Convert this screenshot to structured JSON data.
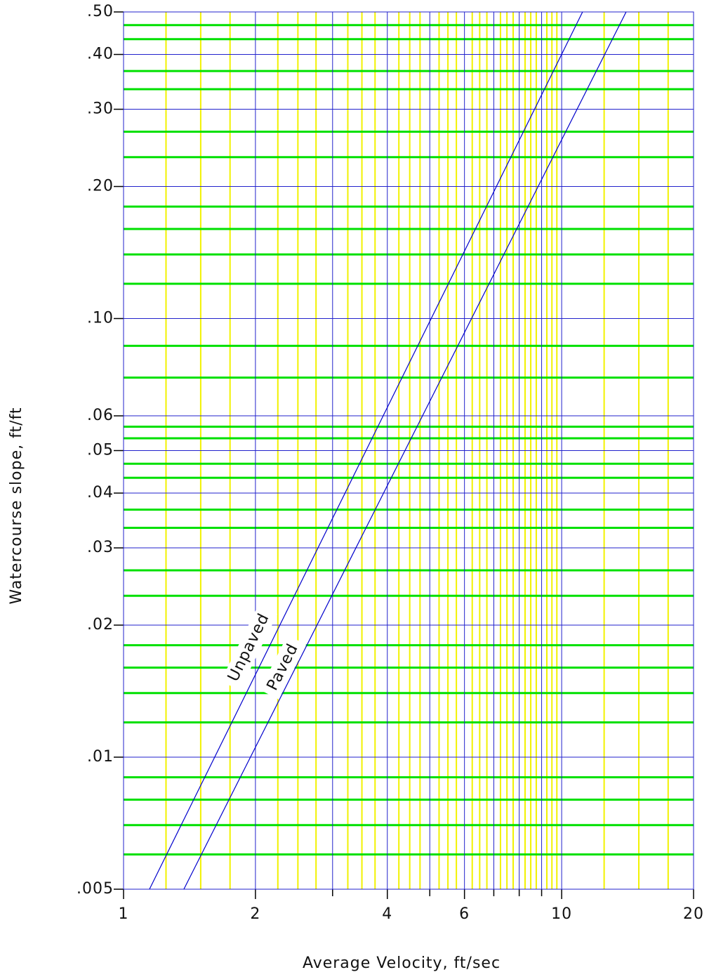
{
  "chart_data": {
    "type": "line",
    "x_label": "Average Velocity, ft/sec",
    "y_label": "Watercourse slope, ft/ft",
    "log_x": true,
    "log_y": true,
    "grid": true,
    "xlim": [
      1,
      20
    ],
    "ylim": [
      0.005,
      0.5
    ],
    "xticks": [
      1,
      2,
      4,
      6,
      10,
      20
    ],
    "xminorticks": [
      3,
      5,
      7,
      8,
      9
    ],
    "yticks": [
      {
        "value": 0.5,
        "label": ".50"
      },
      {
        "value": 0.4,
        "label": ".40"
      },
      {
        "value": 0.3,
        "label": ".30"
      },
      {
        "value": 0.2,
        "label": ".20"
      },
      {
        "value": 0.1,
        "label": ".10"
      },
      {
        "value": 0.06,
        "label": ".06"
      },
      {
        "value": 0.05,
        "label": ".05"
      },
      {
        "value": 0.04,
        "label": ".04"
      },
      {
        "value": 0.03,
        "label": ".03"
      },
      {
        "value": 0.02,
        "label": ".02"
      },
      {
        "value": 0.01,
        "label": ".01"
      },
      {
        "value": 0.005,
        "label": ".005"
      }
    ],
    "series": [
      {
        "name": "Unpaved",
        "color": "#0000cc",
        "x": [
          1.146,
          11.16
        ],
        "values": [
          0.005,
          0.5
        ]
      },
      {
        "name": "Paved",
        "color": "#0000cc",
        "x": [
          1.373,
          14.03
        ],
        "values": [
          0.005,
          0.5
        ]
      }
    ]
  }
}
